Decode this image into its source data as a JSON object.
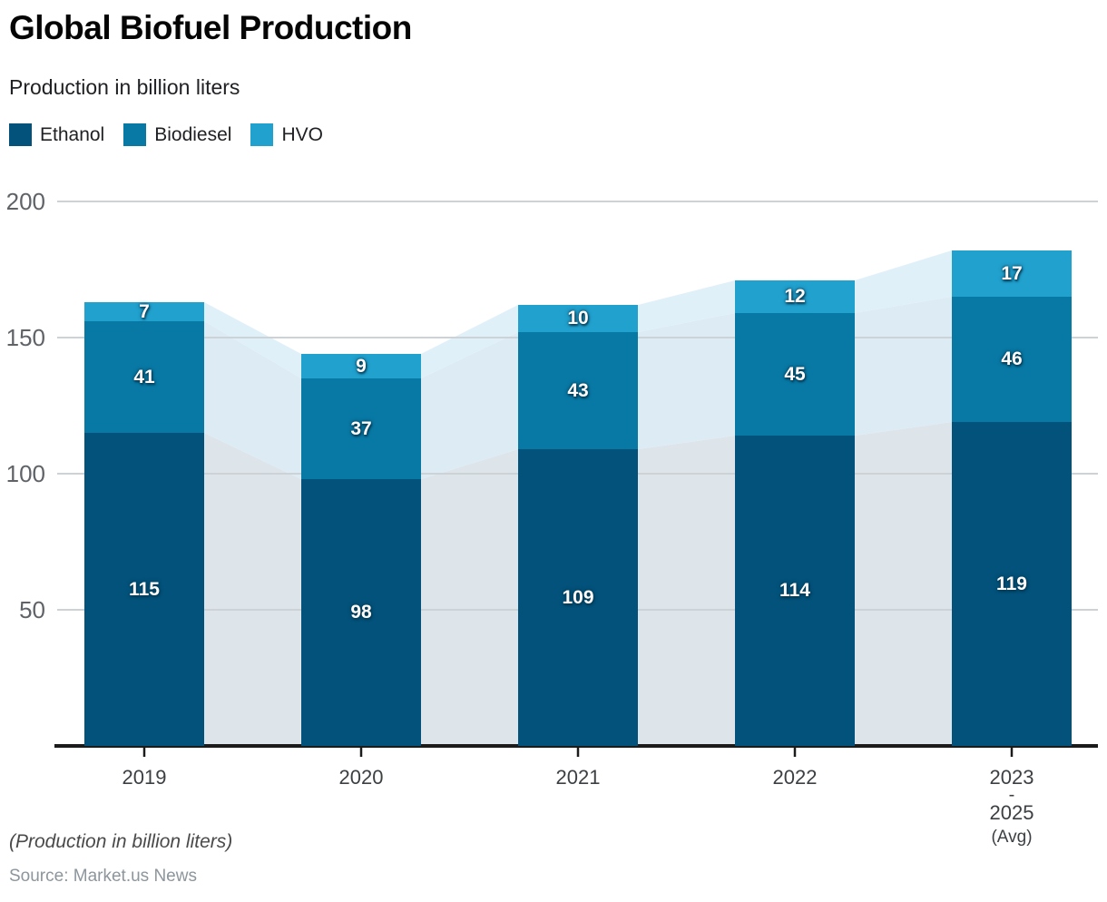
{
  "header": {
    "title": "Global Biofuel Production",
    "subtitle": "Production in billion liters"
  },
  "chart_data": {
    "type": "bar",
    "stacked": true,
    "background_area": true,
    "title": "Global Biofuel Production",
    "subtitle": "Production in billion liters",
    "unit": "billion liters",
    "ylim": [
      0,
      200
    ],
    "yticks": [
      50,
      100,
      150,
      200
    ],
    "grid": true,
    "legend_position": "top-left",
    "categories": [
      "2019",
      "2020",
      "2021",
      "2022",
      "2023-2025 (Avg)"
    ],
    "x_label_lines": [
      [
        "2019"
      ],
      [
        "2020"
      ],
      [
        "2021"
      ],
      [
        "2022"
      ],
      [
        "2023",
        "-",
        "2025",
        "(Avg)"
      ]
    ],
    "series": [
      {
        "name": "Ethanol",
        "color": "#03527B",
        "area_color": "#dde5eb",
        "values": [
          115,
          98,
          109,
          114,
          119
        ]
      },
      {
        "name": "Biodiesel",
        "color": "#0879A5",
        "area_color": "#dcebf4",
        "values": [
          41,
          37,
          43,
          45,
          46
        ]
      },
      {
        "name": "HVO",
        "color": "#21A1CE",
        "area_color": "#e0f0f9",
        "values": [
          7,
          9,
          10,
          12,
          17
        ]
      }
    ]
  },
  "footer": {
    "note": "(Production in billion liters)",
    "source": "Source: Market.us News"
  },
  "colors": {
    "axis": "#1b1b1b",
    "grid": "#cdd2d6",
    "y_tick_label": "#5f6368",
    "x_tick_label": "#3c4043"
  }
}
